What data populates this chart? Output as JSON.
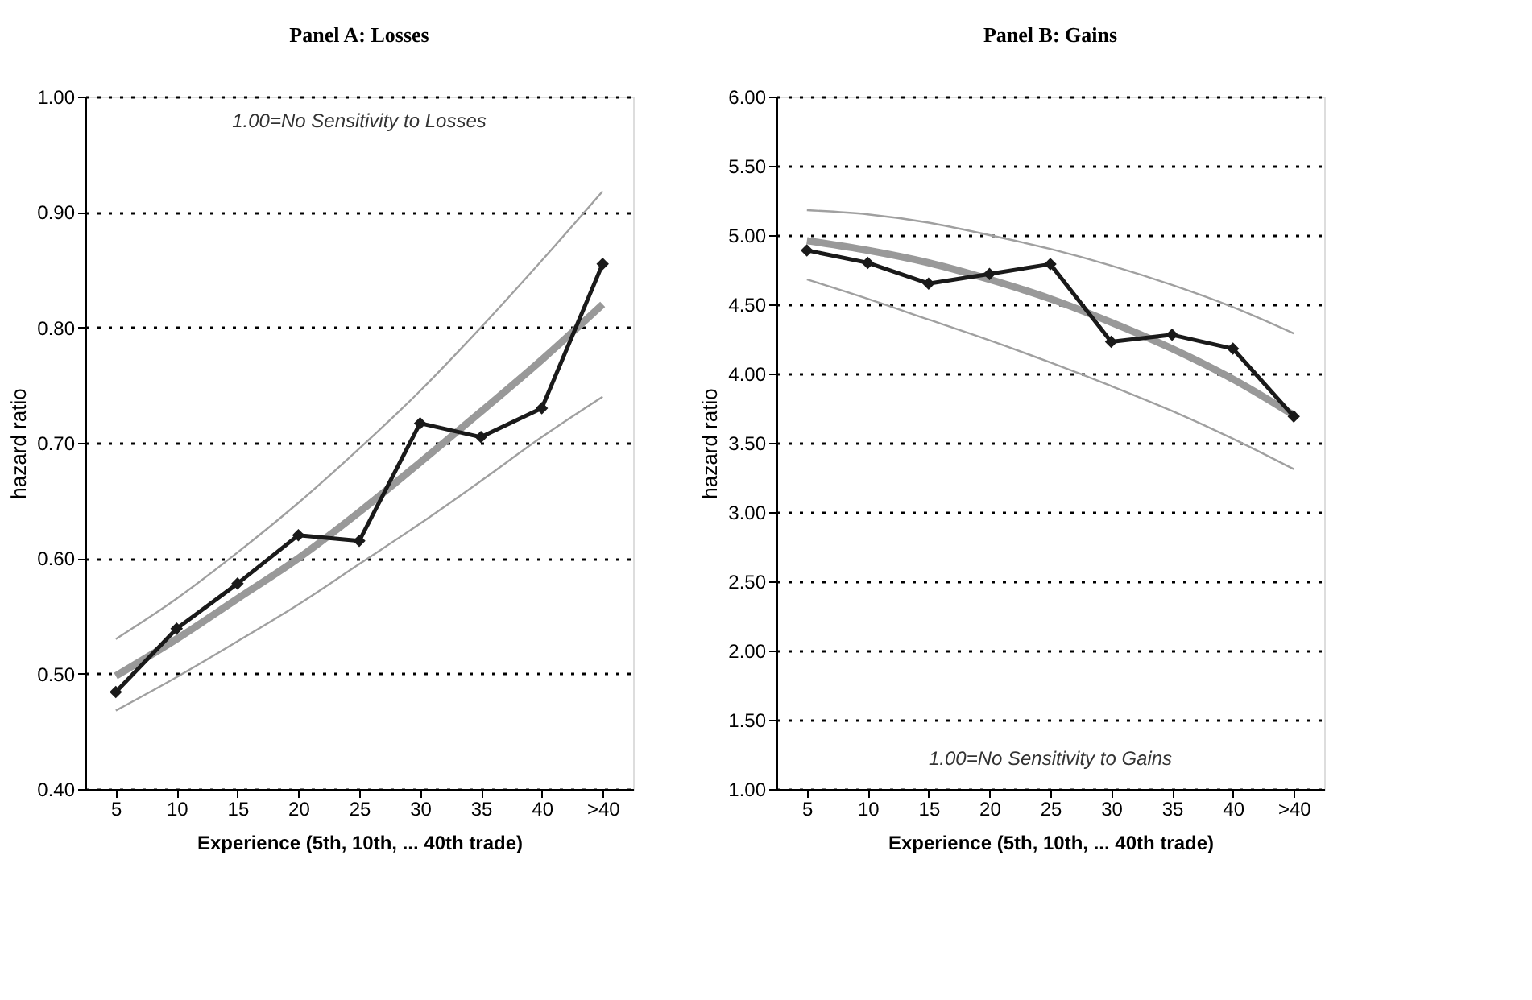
{
  "chart_data": [
    {
      "type": "line",
      "title": "Panel A:  Losses",
      "xlabel": "Experience (5th, 10th, ... 40th trade)",
      "ylabel": "hazard ratio",
      "categories": [
        "5",
        "10",
        "15",
        "20",
        "25",
        "30",
        "35",
        "40",
        ">40"
      ],
      "ylim": [
        0.4,
        1.0
      ],
      "yticks": [
        {
          "value": 0.4,
          "label": "0.40"
        },
        {
          "value": 0.5,
          "label": "0.50"
        },
        {
          "value": 0.6,
          "label": "0.60"
        },
        {
          "value": 0.7,
          "label": "0.70"
        },
        {
          "value": 0.8,
          "label": "0.80"
        },
        {
          "value": 0.9,
          "label": "0.90"
        },
        {
          "value": 1.0,
          "label": "1.00"
        }
      ],
      "grid": "y",
      "legend": false,
      "annotations": [
        "1.00=No Sensitivity to Losses"
      ],
      "series": [
        {
          "color": "#a0a0a0",
          "marker": "none",
          "values": [
            0.53,
            0.565,
            0.605,
            0.648,
            0.695,
            0.745,
            0.8,
            0.858,
            0.918
          ]
        },
        {
          "color": "#a0a0a0",
          "marker": "none",
          "values": [
            0.468,
            0.497,
            0.528,
            0.56,
            0.595,
            0.63,
            0.667,
            0.705,
            0.74
          ]
        },
        {
          "color": "#999999",
          "marker": "none",
          "values": [
            0.498,
            0.53,
            0.565,
            0.6,
            0.64,
            0.683,
            0.727,
            0.772,
            0.82
          ]
        },
        {
          "color": "#1a1a1a",
          "marker": "diamond",
          "values": [
            0.484,
            0.539,
            0.578,
            0.62,
            0.615,
            0.717,
            0.705,
            0.73,
            0.855
          ]
        }
      ]
    },
    {
      "type": "line",
      "title": "Panel B:  Gains",
      "xlabel": "Experience (5th, 10th, ... 40th trade)",
      "ylabel": "hazard ratio",
      "categories": [
        "5",
        "10",
        "15",
        "20",
        "25",
        "30",
        "35",
        "40",
        ">40"
      ],
      "ylim": [
        1.0,
        6.0
      ],
      "yticks": [
        {
          "value": 1.0,
          "label": "1.00"
        },
        {
          "value": 1.5,
          "label": "1.50"
        },
        {
          "value": 2.0,
          "label": "2.00"
        },
        {
          "value": 2.5,
          "label": "2.50"
        },
        {
          "value": 3.0,
          "label": "3.00"
        },
        {
          "value": 3.5,
          "label": "3.50"
        },
        {
          "value": 4.0,
          "label": "4.00"
        },
        {
          "value": 4.5,
          "label": "4.50"
        },
        {
          "value": 5.0,
          "label": "5.00"
        },
        {
          "value": 5.5,
          "label": "5.50"
        },
        {
          "value": 6.0,
          "label": "6.00"
        }
      ],
      "grid": "y",
      "legend": false,
      "annotations": [
        "1.00=No Sensitivity to Gains"
      ],
      "series": [
        {
          "color": "#a0a0a0",
          "marker": "none",
          "values": [
            5.18,
            5.15,
            5.09,
            5.0,
            4.9,
            4.78,
            4.64,
            4.48,
            4.29
          ]
        },
        {
          "color": "#a0a0a0",
          "marker": "none",
          "values": [
            4.68,
            4.54,
            4.39,
            4.24,
            4.08,
            3.91,
            3.73,
            3.53,
            3.31
          ]
        },
        {
          "color": "#999999",
          "marker": "none",
          "values": [
            4.96,
            4.89,
            4.8,
            4.68,
            4.54,
            4.37,
            4.18,
            3.96,
            3.7
          ]
        },
        {
          "color": "#1a1a1a",
          "marker": "diamond",
          "values": [
            4.89,
            4.8,
            4.65,
            4.72,
            4.79,
            4.23,
            4.28,
            4.18,
            3.69
          ]
        }
      ]
    }
  ]
}
